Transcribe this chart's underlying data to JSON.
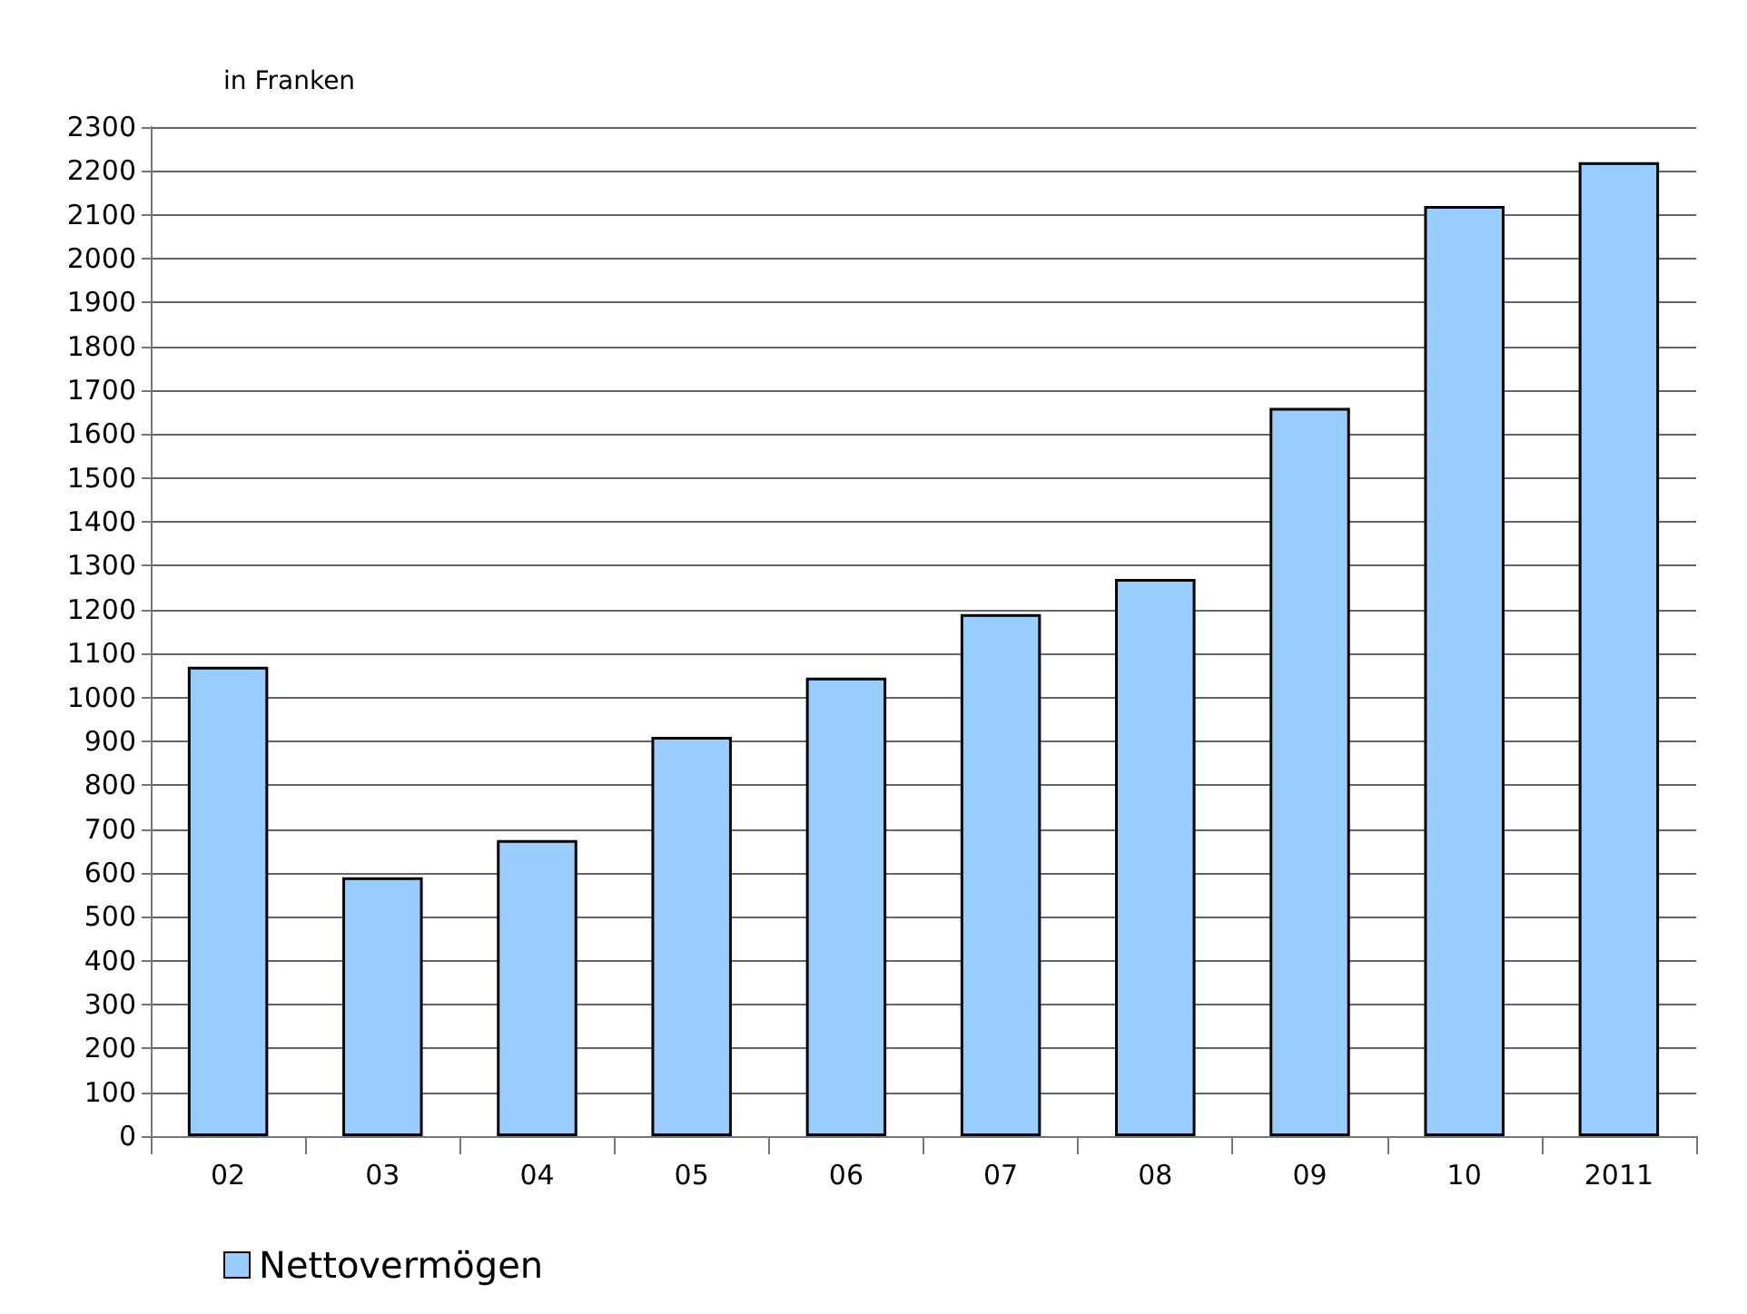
{
  "chart_data": {
    "type": "bar",
    "ylabel": "in Franken",
    "categories": [
      "02",
      "03",
      "04",
      "05",
      "06",
      "07",
      "08",
      "09",
      "10",
      "2011"
    ],
    "series": [
      {
        "name": "Nettovermögen",
        "color": "#99ccff",
        "values": [
          1070,
          590,
          675,
          910,
          1045,
          1190,
          1270,
          1660,
          2120,
          2220
        ]
      }
    ],
    "ylim": [
      0,
      2300
    ],
    "yticks": [
      0,
      100,
      200,
      300,
      400,
      500,
      600,
      700,
      800,
      900,
      1000,
      1100,
      1200,
      1300,
      1400,
      1500,
      1600,
      1700,
      1800,
      1900,
      2000,
      2100,
      2200,
      2300
    ],
    "grid": true,
    "legend": "bottom left"
  }
}
